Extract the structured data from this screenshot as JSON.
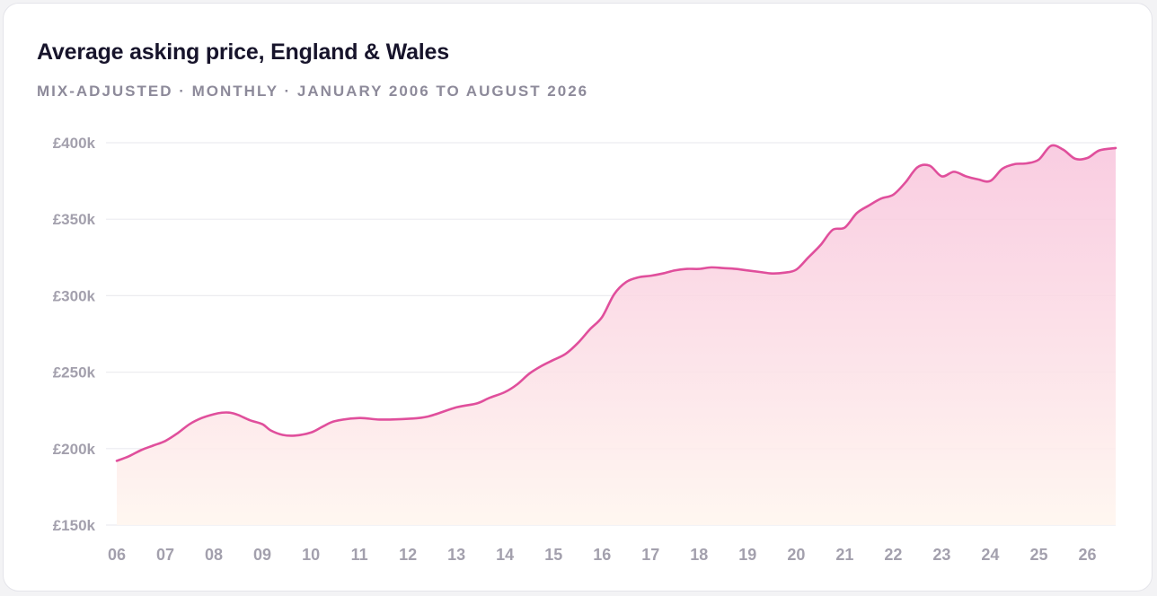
{
  "chart_data": {
    "type": "area",
    "title": "Average asking price, England & Wales",
    "subtitle": "MIX-ADJUSTED · MONTHLY · JANUARY 2006 TO AUGUST 2026",
    "xlabel": "",
    "ylabel": "",
    "ylim": [
      150000,
      400000
    ],
    "xlim": [
      "2006-01",
      "2026-08"
    ],
    "y_ticks": [
      {
        "value": 400000,
        "label": "£400k"
      },
      {
        "value": 350000,
        "label": "£350k"
      },
      {
        "value": 300000,
        "label": "£300k"
      },
      {
        "value": 250000,
        "label": "£250k"
      },
      {
        "value": 200000,
        "label": "£200k"
      },
      {
        "value": 150000,
        "label": "£150k"
      }
    ],
    "x_ticks": [
      {
        "value": "2006-01",
        "label": "06"
      },
      {
        "value": "2007-01",
        "label": "07"
      },
      {
        "value": "2008-01",
        "label": "08"
      },
      {
        "value": "2009-01",
        "label": "09"
      },
      {
        "value": "2010-01",
        "label": "10"
      },
      {
        "value": "2011-01",
        "label": "11"
      },
      {
        "value": "2012-01",
        "label": "12"
      },
      {
        "value": "2013-01",
        "label": "13"
      },
      {
        "value": "2014-01",
        "label": "14"
      },
      {
        "value": "2015-01",
        "label": "15"
      },
      {
        "value": "2016-01",
        "label": "16"
      },
      {
        "value": "2017-01",
        "label": "17"
      },
      {
        "value": "2018-01",
        "label": "18"
      },
      {
        "value": "2019-01",
        "label": "19"
      },
      {
        "value": "2020-01",
        "label": "20"
      },
      {
        "value": "2021-01",
        "label": "21"
      },
      {
        "value": "2022-01",
        "label": "22"
      },
      {
        "value": "2023-01",
        "label": "23"
      },
      {
        "value": "2024-01",
        "label": "24"
      },
      {
        "value": "2025-01",
        "label": "25"
      },
      {
        "value": "2026-01",
        "label": "26"
      }
    ],
    "grid": true,
    "legend": "none",
    "colors": {
      "line": "#e04f9c",
      "fill_top": "#f8c4dc",
      "fill_bottom": "#fff6ef",
      "grid": "#ececf0"
    },
    "series": [
      {
        "points": [
          [
            "2006-01",
            192000
          ],
          [
            "2006-04",
            195000
          ],
          [
            "2006-07",
            199000
          ],
          [
            "2006-10",
            202000
          ],
          [
            "2007-01",
            205000
          ],
          [
            "2007-04",
            210000
          ],
          [
            "2007-07",
            216000
          ],
          [
            "2007-10",
            220000
          ],
          [
            "2008-01",
            222500
          ],
          [
            "2008-03",
            223500
          ],
          [
            "2008-05",
            223500
          ],
          [
            "2008-07",
            222000
          ],
          [
            "2008-10",
            218500
          ],
          [
            "2009-01",
            216000
          ],
          [
            "2009-03",
            212000
          ],
          [
            "2009-06",
            209000
          ],
          [
            "2009-09",
            208500
          ],
          [
            "2010-01",
            210500
          ],
          [
            "2010-04",
            214500
          ],
          [
            "2010-07",
            218000
          ],
          [
            "2011-01",
            220000
          ],
          [
            "2011-06",
            219000
          ],
          [
            "2012-01",
            219500
          ],
          [
            "2012-06",
            221000
          ],
          [
            "2013-01",
            227000
          ],
          [
            "2013-06",
            229500
          ],
          [
            "2013-09",
            233000
          ],
          [
            "2014-01",
            237000
          ],
          [
            "2014-04",
            242000
          ],
          [
            "2014-07",
            249000
          ],
          [
            "2014-10",
            254000
          ],
          [
            "2015-01",
            258000
          ],
          [
            "2015-04",
            262000
          ],
          [
            "2015-07",
            269000
          ],
          [
            "2015-10",
            278000
          ],
          [
            "2016-01",
            286000
          ],
          [
            "2016-04",
            301000
          ],
          [
            "2016-07",
            309000
          ],
          [
            "2016-10",
            312000
          ],
          [
            "2017-01",
            313000
          ],
          [
            "2017-04",
            314500
          ],
          [
            "2017-07",
            316500
          ],
          [
            "2017-10",
            317500
          ],
          [
            "2018-01",
            317500
          ],
          [
            "2018-04",
            318500
          ],
          [
            "2018-07",
            318000
          ],
          [
            "2018-10",
            317500
          ],
          [
            "2019-01",
            316500
          ],
          [
            "2019-04",
            315500
          ],
          [
            "2019-07",
            314500
          ],
          [
            "2019-10",
            315000
          ],
          [
            "2020-01",
            317000
          ],
          [
            "2020-04",
            325000
          ],
          [
            "2020-07",
            333000
          ],
          [
            "2020-10",
            343000
          ],
          [
            "2021-01",
            344500
          ],
          [
            "2021-04",
            354000
          ],
          [
            "2021-07",
            359000
          ],
          [
            "2021-10",
            363500
          ],
          [
            "2022-01",
            366000
          ],
          [
            "2022-04",
            374000
          ],
          [
            "2022-07",
            384000
          ],
          [
            "2022-10",
            385000
          ],
          [
            "2023-01",
            378000
          ],
          [
            "2023-04",
            381000
          ],
          [
            "2023-07",
            378000
          ],
          [
            "2023-10",
            376000
          ],
          [
            "2024-01",
            375000
          ],
          [
            "2024-04",
            383000
          ],
          [
            "2024-07",
            386000
          ],
          [
            "2024-10",
            386500
          ],
          [
            "2025-01",
            389000
          ],
          [
            "2025-04",
            398000
          ],
          [
            "2025-07",
            395500
          ],
          [
            "2025-10",
            389500
          ],
          [
            "2026-01",
            390000
          ],
          [
            "2026-04",
            395000
          ],
          [
            "2026-08",
            396500
          ]
        ]
      }
    ]
  }
}
